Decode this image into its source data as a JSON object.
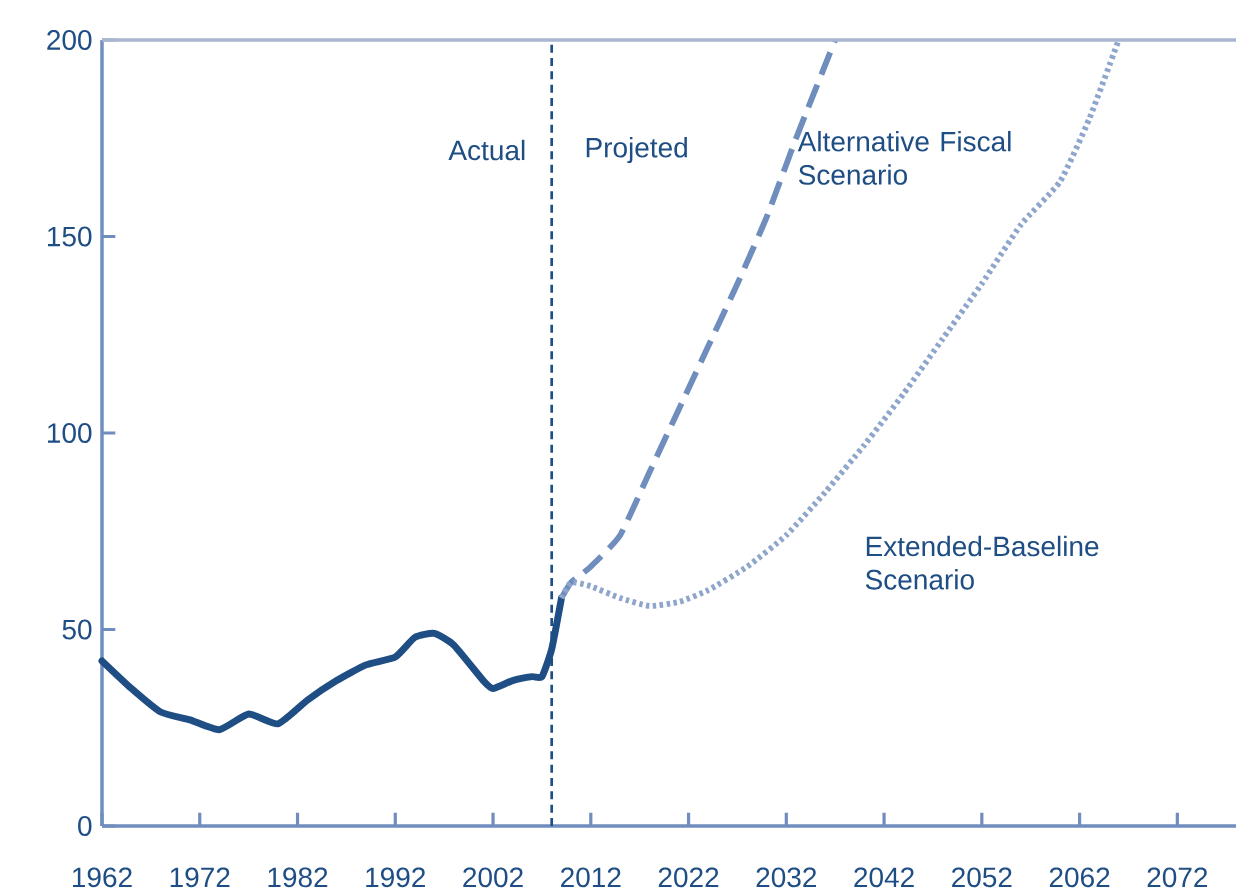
{
  "chart_data": {
    "type": "line",
    "xlim": [
      1962,
      2078
    ],
    "xticks": [
      1962,
      1972,
      1982,
      1992,
      2002,
      2012,
      2022,
      2032,
      2042,
      2052,
      2062,
      2072
    ],
    "ylim": [
      0,
      200
    ],
    "yticks": [
      0,
      50,
      100,
      150,
      200
    ],
    "grid": false,
    "series": [
      {
        "color": "#1f4e85",
        "line_style": "solid",
        "x": [
          1962,
          1965,
          1968,
          1971,
          1974,
          1977,
          1980,
          1983,
          1986,
          1989,
          1992,
          1994,
          1996,
          1998,
          2001,
          2002,
          2004,
          2006,
          2007,
          2008,
          2009
        ],
        "values": [
          42,
          35,
          29,
          27,
          24.5,
          28.5,
          26,
          32,
          37,
          41,
          43,
          48,
          49,
          46,
          37,
          35,
          37,
          38,
          38,
          45,
          58
        ]
      },
      {
        "name": "Alternative Fiscal Scenario",
        "color": "#6f8dbd",
        "line_style": "dashed",
        "x": [
          2009,
          2010,
          2012,
          2015,
          2018,
          2021,
          2024,
          2027,
          2030,
          2033,
          2037
        ],
        "values": [
          58,
          62,
          66,
          74,
          90,
          106,
          122,
          138,
          155,
          175,
          200
        ]
      },
      {
        "name": "Extended-Baseline Scenario",
        "color": "#8fa6cc",
        "line_style": "dotted",
        "x": [
          2009,
          2010,
          2012,
          2015,
          2018,
          2021,
          2024,
          2028,
          2032,
          2036,
          2040,
          2044,
          2048,
          2052,
          2056,
          2060,
          2063,
          2066
        ],
        "values": [
          58,
          62,
          61,
          58,
          56,
          57,
          60,
          66,
          74,
          85,
          97,
          110,
          124,
          138,
          153,
          164,
          180,
          200
        ]
      }
    ],
    "ref_lines": [
      {
        "axis": "x",
        "value": 2008,
        "color": "#1f4e85",
        "line_style": "dashed"
      }
    ],
    "annotations": [
      "Actual",
      "Projeted"
    ]
  }
}
